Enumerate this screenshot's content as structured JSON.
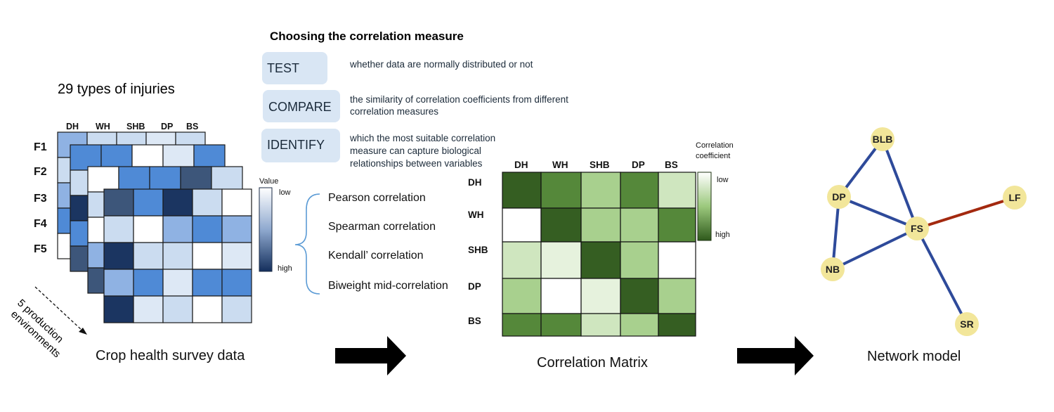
{
  "section_title": "Choosing the correlation measure",
  "steps": [
    {
      "label": "TEST",
      "desc": [
        "whether data are normally distributed or not"
      ]
    },
    {
      "label": "COMPARE",
      "desc": [
        "the similarity of correlation coefficients from different",
        "correlation measures"
      ]
    },
    {
      "label": "IDENTIFY",
      "desc": [
        "which the most suitable correlation",
        "measure can capture biological",
        "relationships between variables"
      ]
    }
  ],
  "survey": {
    "title": "29 types of injuries",
    "columns": [
      "DH",
      "WH",
      "SHB",
      "DP",
      "BS"
    ],
    "fields": [
      "F1",
      "F2",
      "F3",
      "F4",
      "F5"
    ],
    "environments_label": [
      "5 production",
      "environments"
    ],
    "caption": "Crop health survey data",
    "legend_title": "Value",
    "legend_low": "low",
    "legend_high": "high"
  },
  "measures": [
    "Pearson correlation",
    "Spearman correlation",
    "Kendall’ correlation",
    "Biweight mid-correlation"
  ],
  "matrix": {
    "columns": [
      "DH",
      "WH",
      "SHB",
      "DP",
      "BS"
    ],
    "rows": [
      "DH",
      "WH",
      "SHB",
      "DP",
      "BS"
    ],
    "legend_title": [
      "Correlation",
      "coefficient"
    ],
    "legend_low": "low",
    "legend_high": "high",
    "caption": "Correlation Matrix"
  },
  "network": {
    "caption": "Network model",
    "nodes": [
      "BLB",
      "DP",
      "LF",
      "FS",
      "NB",
      "SR"
    ]
  },
  "colors": {
    "blue_dark": "#1b3561",
    "blue_mid": "#4f8ad6",
    "blue_light": "#cbdcf0",
    "green_dark": "#355e22",
    "green_mid": "#55883a",
    "green_light": "#a8d08e",
    "node_fill": "#f2e69a",
    "edge_blue": "#2e4a9a",
    "edge_red": "#a3290f"
  }
}
